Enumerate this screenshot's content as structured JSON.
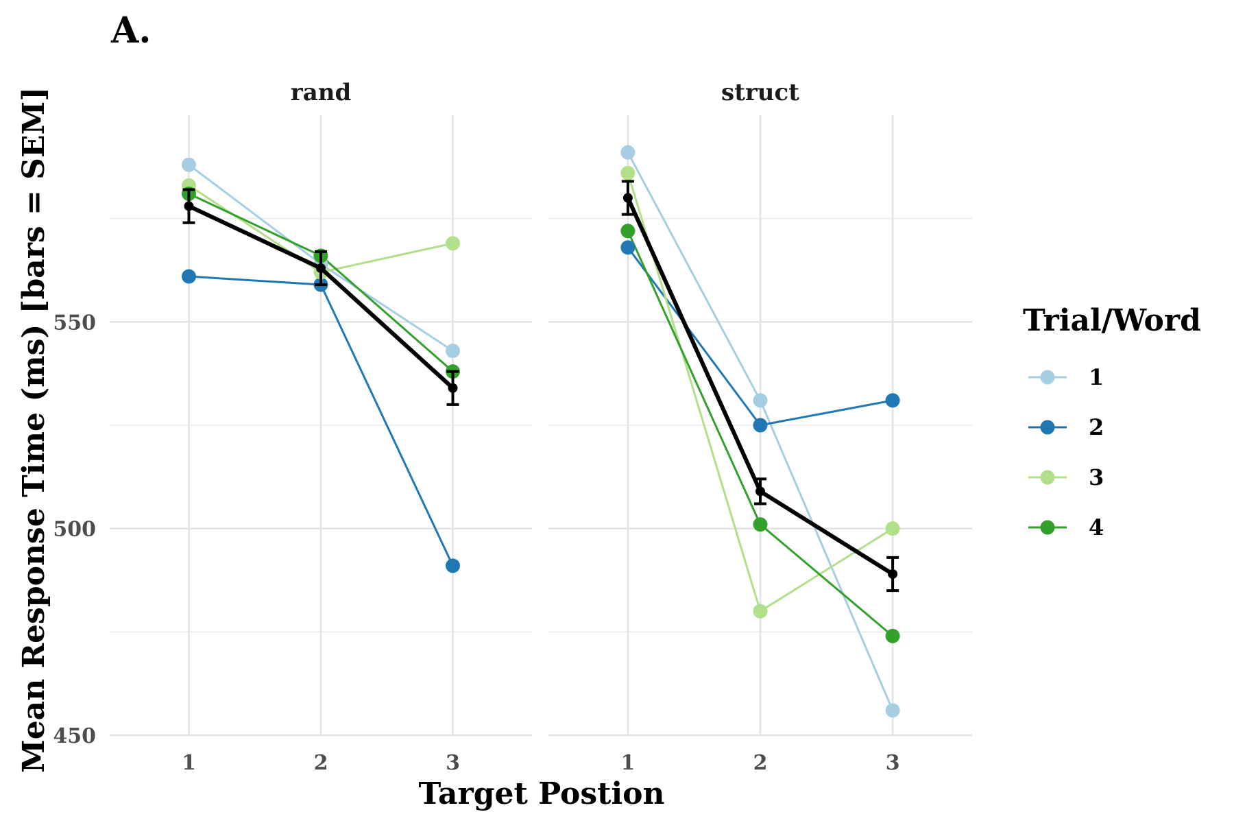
{
  "chart_data": {
    "type": "line",
    "panel_label": "A.",
    "xlabel": "Target Postion",
    "ylabel": "Mean Response Time (ms) [bars = SEM]",
    "x": [
      1,
      2,
      3
    ],
    "x_ticks": [
      "1",
      "2",
      "3"
    ],
    "ylim": [
      450,
      600
    ],
    "y_ticks": [
      450,
      500,
      550
    ],
    "legend": {
      "title": "Trial/Word",
      "position": "right",
      "entries": [
        {
          "label": "1",
          "color": "#a6cee3"
        },
        {
          "label": "2",
          "color": "#1f78b4"
        },
        {
          "label": "3",
          "color": "#b2df8a"
        },
        {
          "label": "4",
          "color": "#33a02c"
        }
      ]
    },
    "mean_color": "#000000",
    "facets": [
      {
        "name": "rand",
        "series": [
          {
            "name": "1",
            "color": "#a6cee3",
            "values": [
              588,
              564,
              543
            ]
          },
          {
            "name": "2",
            "color": "#1f78b4",
            "values": [
              561,
              559,
              491
            ]
          },
          {
            "name": "3",
            "color": "#b2df8a",
            "values": [
              583,
              562,
              569
            ]
          },
          {
            "name": "4",
            "color": "#33a02c",
            "values": [
              581,
              566,
              538
            ]
          }
        ],
        "mean": {
          "values": [
            578,
            563,
            534
          ],
          "sem": [
            4,
            4,
            4
          ]
        }
      },
      {
        "name": "struct",
        "series": [
          {
            "name": "1",
            "color": "#a6cee3",
            "values": [
              591,
              531,
              456
            ]
          },
          {
            "name": "2",
            "color": "#1f78b4",
            "values": [
              568,
              525,
              531
            ]
          },
          {
            "name": "3",
            "color": "#b2df8a",
            "values": [
              586,
              480,
              500
            ]
          },
          {
            "name": "4",
            "color": "#33a02c",
            "values": [
              572,
              501,
              474
            ]
          }
        ],
        "mean": {
          "values": [
            580,
            509,
            489
          ],
          "sem": [
            4,
            3,
            4
          ]
        }
      }
    ]
  }
}
